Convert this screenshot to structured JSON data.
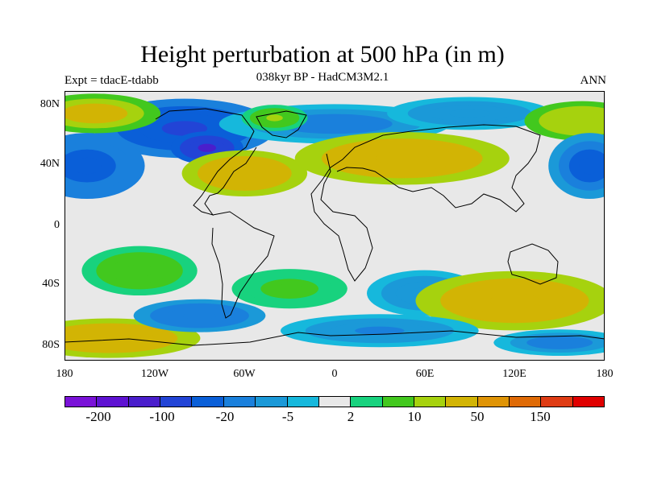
{
  "header": {
    "title": "Height perturbation at 500 hPa (in m)",
    "subtitle": "038kyr BP - HadCM3M2.1",
    "left_label": "Expt = tdacE-tdabb",
    "right_label": "ANN"
  },
  "axes": {
    "y_ticks": [
      "80N",
      "40N",
      "0",
      "40S",
      "80S"
    ],
    "x_ticks": [
      "180",
      "120W",
      "60W",
      "0",
      "60E",
      "120E",
      "180"
    ]
  },
  "colorbar": {
    "colors": [
      "#7a12d8",
      "#5e12d2",
      "#4a1ecc",
      "#2244d6",
      "#0a5fd8",
      "#1a80dc",
      "#1b99d8",
      "#16b8dc",
      "#e8e8e8",
      "#18d27e",
      "#42c81e",
      "#a6d20e",
      "#d2b404",
      "#df9406",
      "#df6a06",
      "#df3c14",
      "#e00000"
    ],
    "labels": [
      "-200",
      "-100",
      "-20",
      "-5",
      "2",
      "10",
      "50",
      "150"
    ]
  },
  "map_data": {
    "lon_range": [
      -180,
      180
    ],
    "lat_range": [
      -90,
      90
    ],
    "blobs": [
      {
        "lon": -100,
        "lat": 65,
        "rx": 55,
        "ry": 18,
        "value": -60
      },
      {
        "lon": -85,
        "lat": 52,
        "rx": 22,
        "ry": 10,
        "value": -120
      },
      {
        "lon": 0,
        "lat": 68,
        "rx": 70,
        "ry": 12,
        "value": -15
      },
      {
        "lon": 90,
        "lat": 75,
        "rx": 50,
        "ry": 10,
        "value": -10
      },
      {
        "lon": -60,
        "lat": 35,
        "rx": 38,
        "ry": 14,
        "value": 40
      },
      {
        "lon": 45,
        "lat": 45,
        "rx": 65,
        "ry": 16,
        "value": 45
      },
      {
        "lon": -160,
        "lat": 75,
        "rx": 40,
        "ry": 12,
        "value": 30
      },
      {
        "lon": 165,
        "lat": 70,
        "rx": 35,
        "ry": 12,
        "value": 20
      },
      {
        "lon": -165,
        "lat": 40,
        "rx": 35,
        "ry": 20,
        "value": -35
      },
      {
        "lon": 170,
        "lat": 40,
        "rx": 25,
        "ry": 20,
        "value": -30
      },
      {
        "lon": -40,
        "lat": 72,
        "rx": 20,
        "ry": 8,
        "value": 12
      },
      {
        "lon": -130,
        "lat": -30,
        "rx": 35,
        "ry": 15,
        "value": 10
      },
      {
        "lon": -30,
        "lat": -42,
        "rx": 35,
        "ry": 12,
        "value": 8
      },
      {
        "lon": 60,
        "lat": -45,
        "rx": 35,
        "ry": 14,
        "value": -10
      },
      {
        "lon": 120,
        "lat": -50,
        "rx": 60,
        "ry": 18,
        "value": 40
      },
      {
        "lon": -150,
        "lat": -75,
        "rx": 55,
        "ry": 12,
        "value": 40
      },
      {
        "lon": -90,
        "lat": -60,
        "rx": 40,
        "ry": 10,
        "value": -20
      },
      {
        "lon": 30,
        "lat": -70,
        "rx": 60,
        "ry": 10,
        "value": -12
      },
      {
        "lon": 150,
        "lat": -78,
        "rx": 40,
        "ry": 8,
        "value": -15
      }
    ]
  }
}
